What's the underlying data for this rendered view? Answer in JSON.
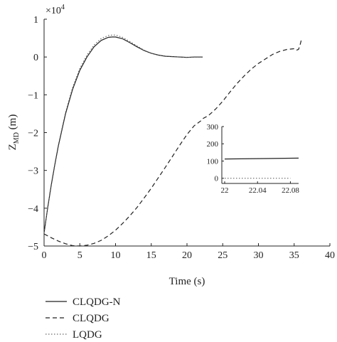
{
  "chart_data": [
    {
      "type": "line",
      "xlabel": "Time (s)",
      "ylabel_main": "Z",
      "ylabel_sub": "MD",
      "ylabel_unit": " (m)",
      "multiplier_base": "×10",
      "multiplier_exp": "4",
      "xlim": [
        0,
        40
      ],
      "ylim": [
        -5,
        1
      ],
      "xticks": [
        "0",
        "5",
        "10",
        "15",
        "20",
        "25",
        "30",
        "35",
        "40"
      ],
      "yticks": [
        "1",
        "0",
        "−1",
        "−2",
        "−3",
        "−4",
        "−5"
      ],
      "grid": false,
      "legend_position": "bottom-left",
      "series": [
        {
          "name": "CLQDG-N",
          "style": "solid",
          "x": [
            0,
            0.5,
            1,
            1.5,
            2,
            3,
            4,
            5,
            6,
            7,
            8,
            9,
            9.5,
            10,
            11,
            12,
            13,
            14,
            15,
            16,
            17,
            18,
            19,
            20,
            21,
            22,
            22.2
          ],
          "y": [
            -4.65,
            -4.0,
            -3.4,
            -2.85,
            -2.35,
            -1.5,
            -0.85,
            -0.35,
            0.0,
            0.27,
            0.44,
            0.52,
            0.53,
            0.53,
            0.48,
            0.38,
            0.27,
            0.17,
            0.1,
            0.05,
            0.02,
            0.01,
            0.0,
            -0.01,
            0.0,
            0.0,
            0.0
          ]
        },
        {
          "name": "CLQDG",
          "style": "dashed",
          "x": [
            0,
            1,
            2,
            3,
            4,
            5,
            6,
            7,
            8,
            9,
            10,
            11,
            12,
            13,
            14,
            15,
            16,
            17,
            18,
            19,
            20,
            21,
            22,
            22.3,
            23,
            24,
            25,
            26,
            27,
            28,
            29,
            30,
            31,
            32,
            33,
            34,
            35,
            35.3,
            35.6,
            35.8,
            36
          ],
          "y": [
            -4.68,
            -4.78,
            -4.87,
            -4.94,
            -4.99,
            -5.0,
            -4.98,
            -4.93,
            -4.85,
            -4.73,
            -4.58,
            -4.4,
            -4.2,
            -3.98,
            -3.73,
            -3.47,
            -3.19,
            -2.91,
            -2.62,
            -2.33,
            -2.05,
            -1.82,
            -1.68,
            -1.62,
            -1.55,
            -1.38,
            -1.17,
            -0.93,
            -0.7,
            -0.5,
            -0.32,
            -0.17,
            -0.05,
            0.07,
            0.15,
            0.2,
            0.22,
            0.18,
            0.2,
            0.3,
            0.45
          ]
        },
        {
          "name": "LQDG",
          "style": "dotted",
          "x": [
            0,
            0.5,
            1,
            1.5,
            2,
            3,
            4,
            5,
            6,
            7,
            8,
            9,
            9.5,
            10,
            11,
            12,
            13,
            14,
            15,
            16,
            17,
            18,
            19,
            20,
            21,
            22,
            22.2
          ],
          "y": [
            -4.65,
            -3.98,
            -3.37,
            -2.82,
            -2.32,
            -1.46,
            -0.8,
            -0.3,
            0.05,
            0.32,
            0.49,
            0.57,
            0.58,
            0.58,
            0.52,
            0.41,
            0.29,
            0.18,
            0.1,
            0.05,
            0.02,
            0.01,
            0.0,
            -0.01,
            0.0,
            0.0,
            0.0
          ]
        }
      ]
    },
    {
      "type": "line",
      "role": "inset",
      "xlim": [
        22,
        22.09
      ],
      "ylim": [
        -30,
        300
      ],
      "xticks": [
        "22",
        "22.04",
        "22.08"
      ],
      "xtick_values": [
        22,
        22.04,
        22.08
      ],
      "yticks": [
        "300",
        "200",
        "100",
        "0"
      ],
      "ytick_values": [
        300,
        200,
        100,
        0
      ],
      "grid": false,
      "series": [
        {
          "name": "CLQDG-N",
          "style": "solid",
          "x": [
            22,
            22.09
          ],
          "y": [
            112,
            117
          ]
        },
        {
          "name": "LQDG",
          "style": "dotted",
          "x": [
            22,
            22.08
          ],
          "y": [
            0,
            0
          ]
        }
      ]
    }
  ]
}
